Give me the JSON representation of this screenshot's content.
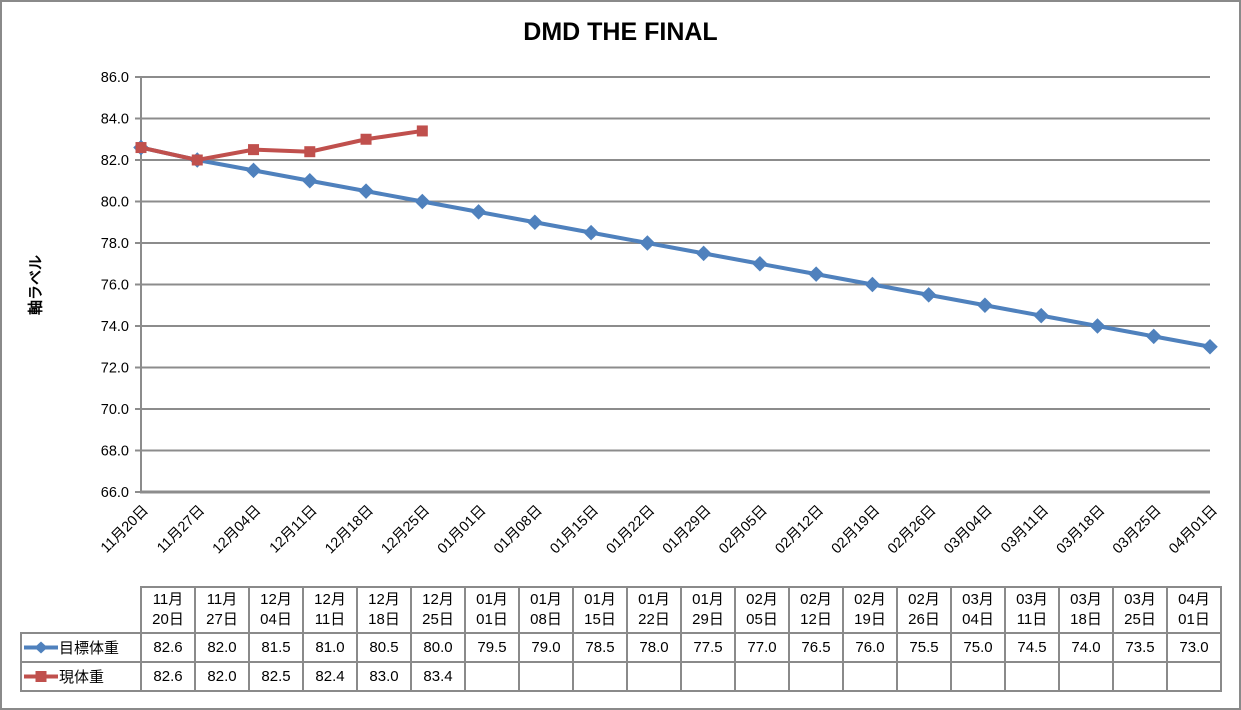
{
  "window": {
    "background": "#ffffff",
    "border_color": "#8a8a8a"
  },
  "chart": {
    "title": "DMD THE FINAL",
    "y_axis_title": "軸ラベル"
  },
  "chart_data": {
    "type": "line",
    "title": "DMD THE FINAL",
    "xlabel": "",
    "ylabel": "軸ラベル",
    "ylim": [
      66.0,
      86.0
    ],
    "ytick_step": 2.0,
    "grid": true,
    "gridline_color": "#8c8c8c",
    "axis_color": "#8c8c8c",
    "legend_position": "data-table-keys",
    "categories": [
      "11月20日",
      "11月27日",
      "12月04日",
      "12月11日",
      "12月18日",
      "12月25日",
      "01月01日",
      "01月08日",
      "01月15日",
      "01月22日",
      "01月29日",
      "02月05日",
      "02月12日",
      "02月19日",
      "02月26日",
      "03月04日",
      "03月11日",
      "03月18日",
      "03月25日",
      "04月01日"
    ],
    "series": [
      {
        "name": "目標体重",
        "color": "#4f81bd",
        "marker": "diamond",
        "values": [
          82.6,
          82.0,
          81.5,
          81.0,
          80.5,
          80.0,
          79.5,
          79.0,
          78.5,
          78.0,
          77.5,
          77.0,
          76.5,
          76.0,
          75.5,
          75.0,
          74.5,
          74.0,
          73.5,
          73.0
        ]
      },
      {
        "name": "現体重",
        "color": "#c0504d",
        "marker": "square",
        "values": [
          82.6,
          82.0,
          82.5,
          82.4,
          83.0,
          83.4,
          null,
          null,
          null,
          null,
          null,
          null,
          null,
          null,
          null,
          null,
          null,
          null,
          null,
          null
        ]
      }
    ]
  }
}
